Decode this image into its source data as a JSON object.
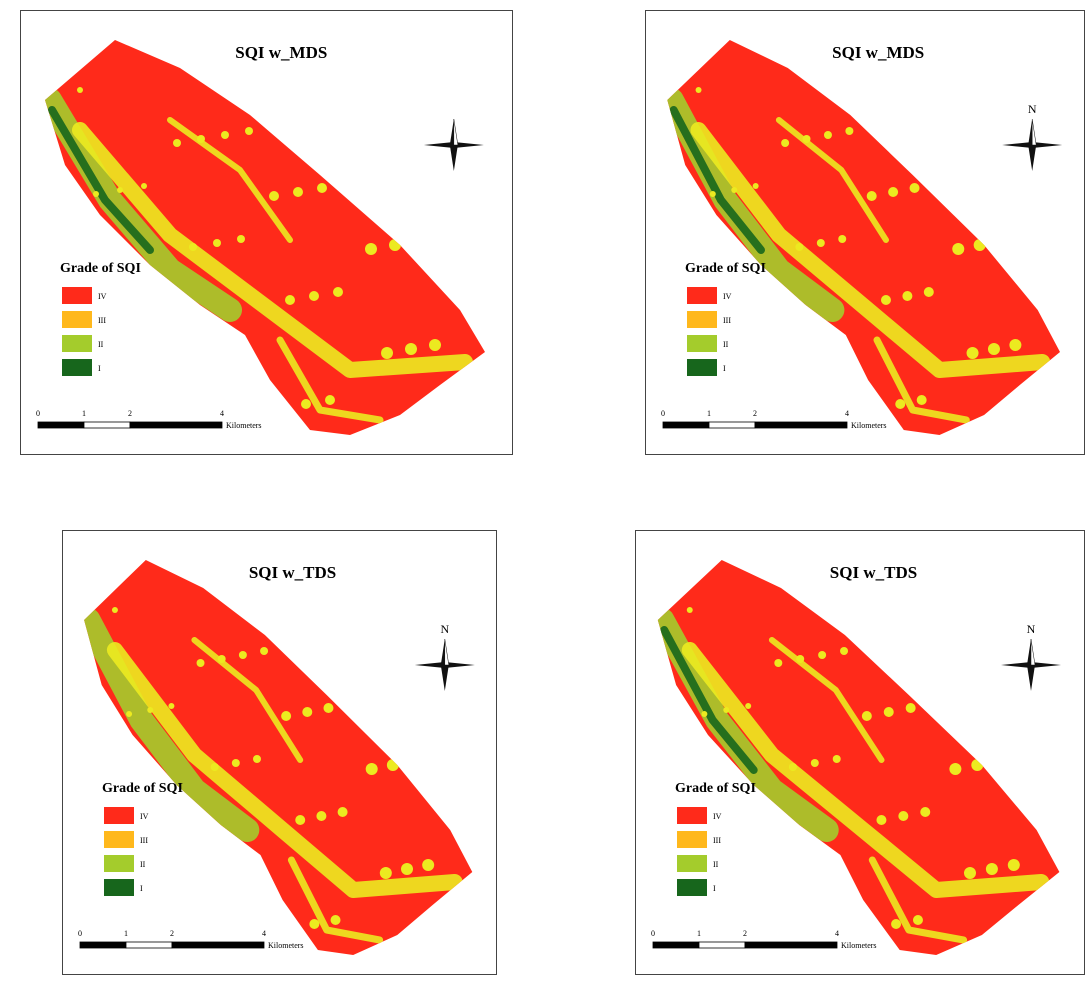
{
  "maps": [
    {
      "title": "SQI w_MDS",
      "legend": {
        "title": "Grade of  SQI",
        "items": [
          {
            "label": "IV",
            "color": "#ff2a1a"
          },
          {
            "label": "III",
            "color": "#ffb81c"
          },
          {
            "label": "II",
            "color": "#a4cc2c"
          },
          {
            "label": "I",
            "color": "#17661c"
          }
        ]
      },
      "scale": {
        "ticks": [
          0,
          1,
          2,
          4
        ],
        "unit": "Kilometers"
      }
    },
    {
      "title": "SQI w_MDS",
      "north": "N",
      "legend": {
        "title": "Grade of  SQI",
        "items": [
          {
            "label": "IV",
            "color": "#ff2a1a"
          },
          {
            "label": "III",
            "color": "#ffb81c"
          },
          {
            "label": "II",
            "color": "#a4cc2c"
          },
          {
            "label": "I",
            "color": "#17661c"
          }
        ]
      },
      "scale": {
        "ticks": [
          0,
          1,
          2,
          4
        ],
        "unit": "Kilometers"
      }
    },
    {
      "title": "SQI w_TDS",
      "north": "N",
      "legend": {
        "title": "Grade of  SQI",
        "items": [
          {
            "label": "IV",
            "color": "#ff2a1a"
          },
          {
            "label": "III",
            "color": "#ffb81c"
          },
          {
            "label": "II",
            "color": "#a4cc2c"
          },
          {
            "label": "I",
            "color": "#17661c"
          }
        ]
      },
      "scale": {
        "ticks": [
          0,
          1,
          2,
          4
        ],
        "unit": "Kilometers"
      }
    },
    {
      "title": "SQI w_TDS",
      "north": "N",
      "legend": {
        "title": "Grade of  SQI",
        "items": [
          {
            "label": "IV",
            "color": "#ff2a1a"
          },
          {
            "label": "III",
            "color": "#ffb81c"
          },
          {
            "label": "II",
            "color": "#a4cc2c"
          },
          {
            "label": "I",
            "color": "#17661c"
          }
        ]
      },
      "scale": {
        "ticks": [
          0,
          1,
          2,
          4
        ],
        "unit": "Kilometers"
      }
    }
  ]
}
